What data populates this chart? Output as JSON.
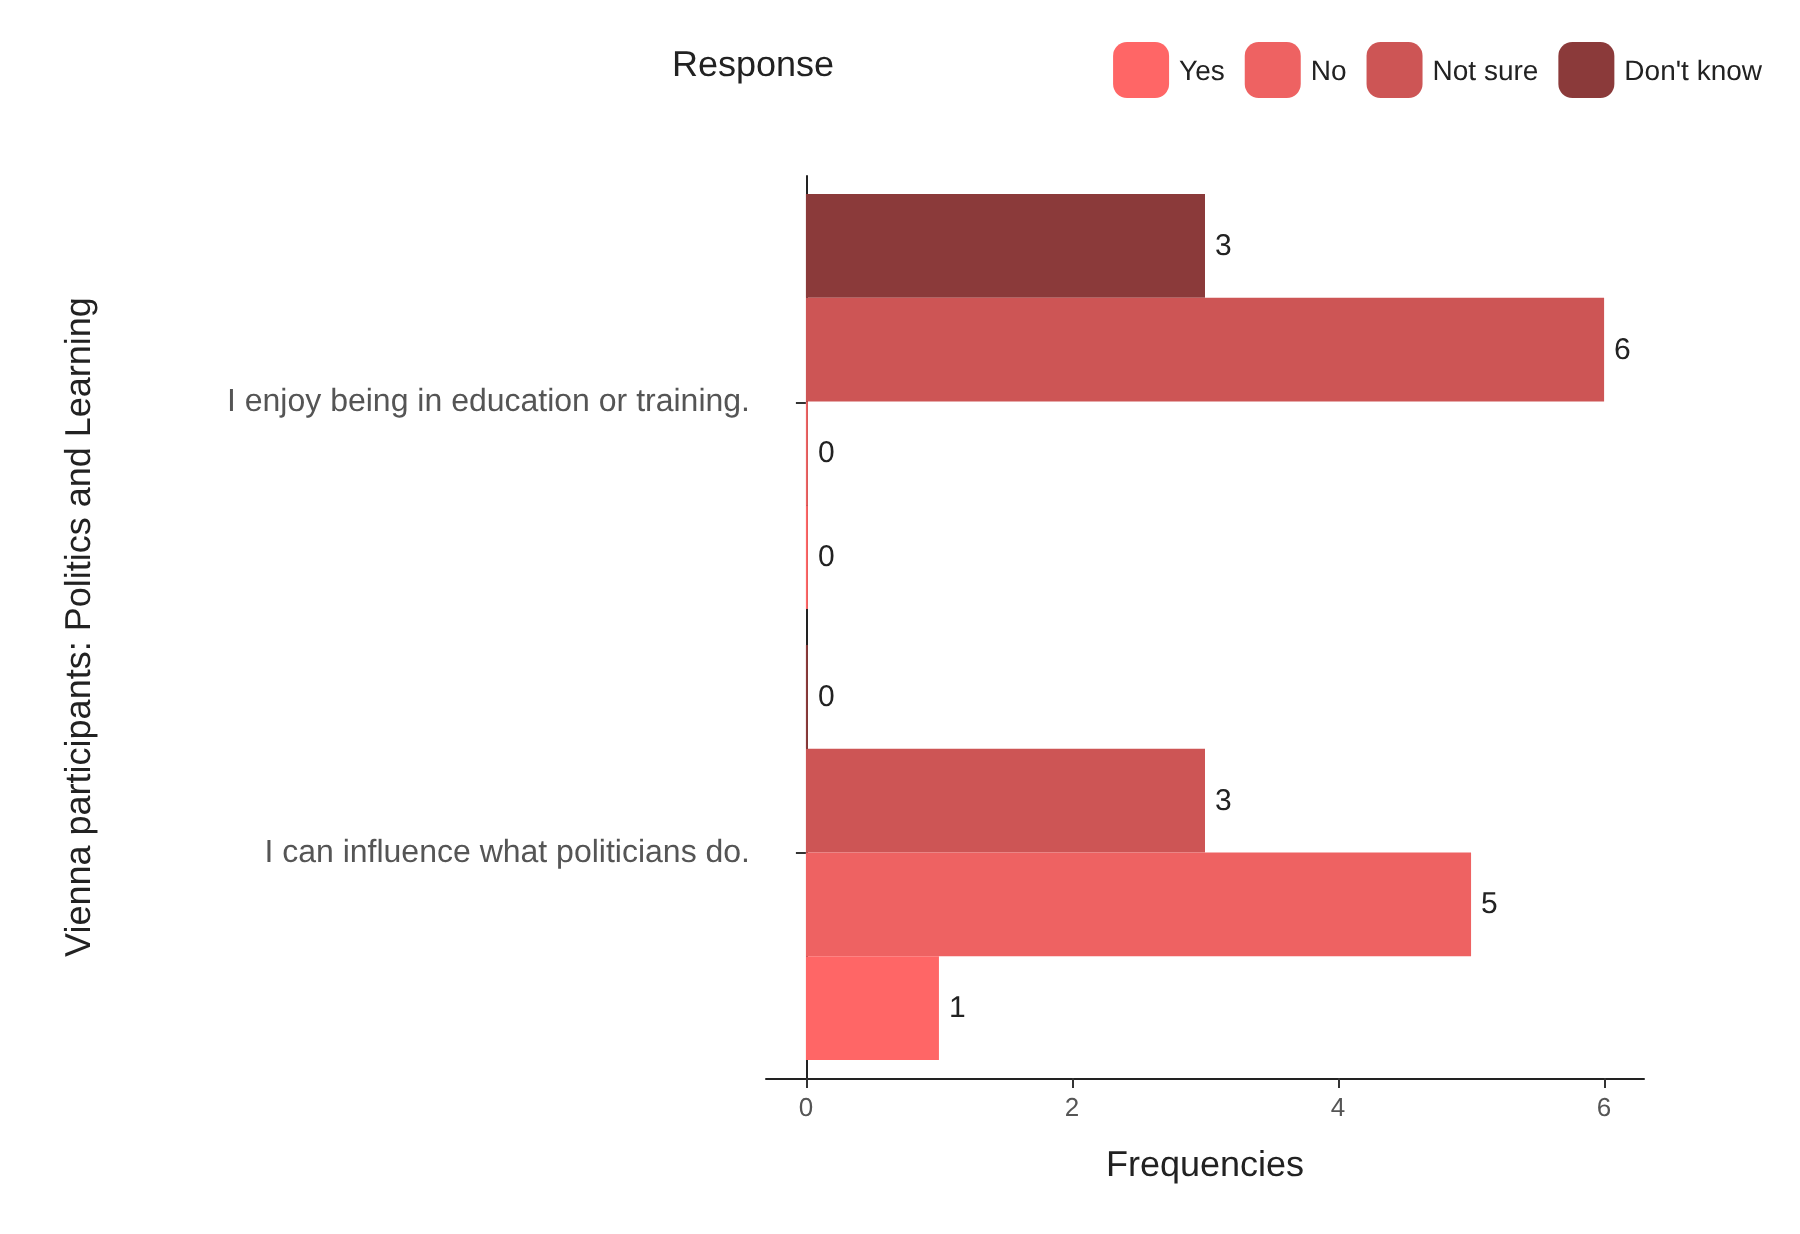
{
  "chart_data": {
    "type": "bar",
    "orientation": "horizontal",
    "legend_title": "Response",
    "xlabel": "Frequencies",
    "ylabel": "Vienna participants: Politics and Learning",
    "categories": [
      "I enjoy being in education or training.",
      "I can influence what politicians do."
    ],
    "series": [
      {
        "name": "Yes",
        "color": "#ff6666",
        "values": [
          0,
          1
        ]
      },
      {
        "name": "No",
        "color": "#ee6262",
        "values": [
          0,
          5
        ]
      },
      {
        "name": "Not sure",
        "color": "#cd5555",
        "values": [
          6,
          3
        ]
      },
      {
        "name": "Don't know",
        "color": "#8b3a3a",
        "values": [
          3,
          0
        ]
      }
    ],
    "xlim": [
      -0.3,
      6.3
    ],
    "xticks": [
      0,
      2,
      4,
      6
    ],
    "data_labels": true,
    "grid": false,
    "legend": "top right"
  }
}
